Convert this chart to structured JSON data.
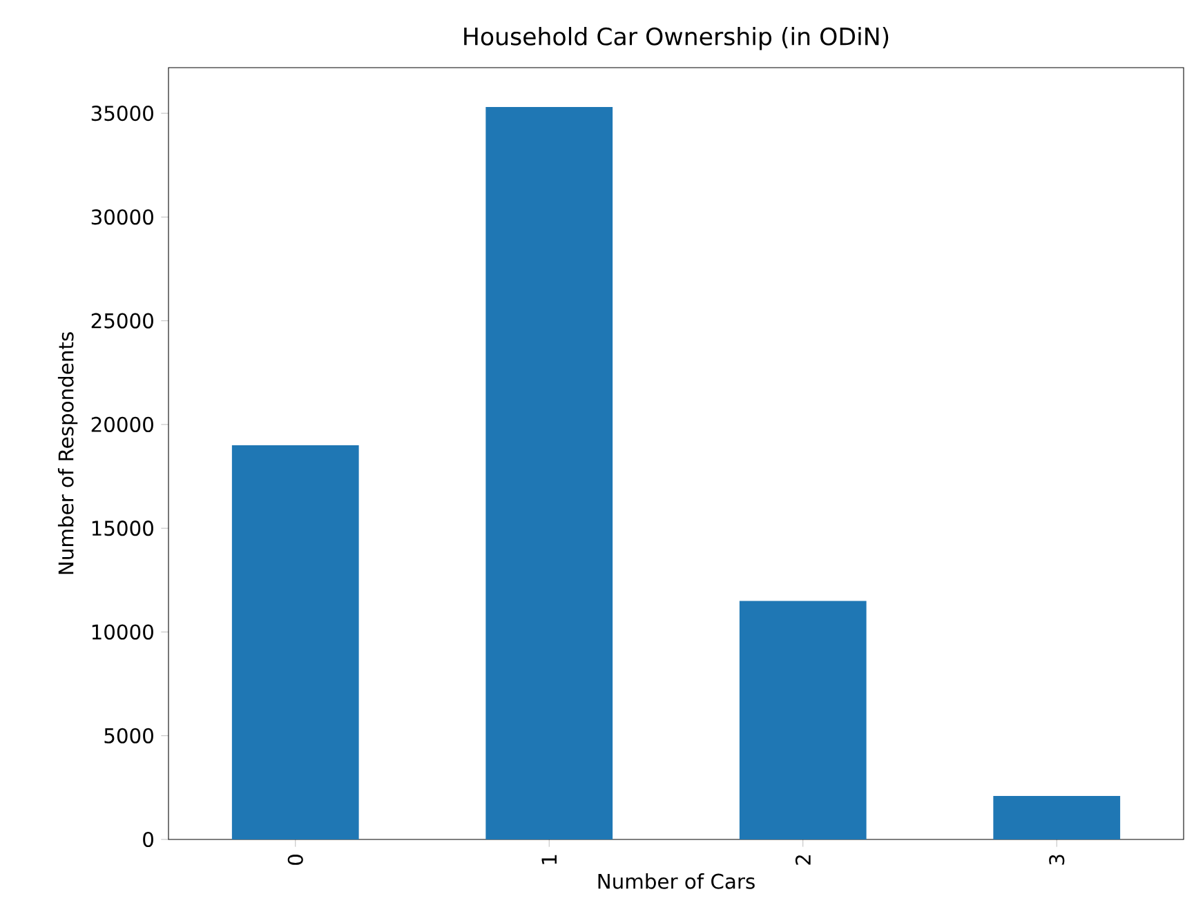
{
  "chart_data": {
    "type": "bar",
    "title": "Household Car Ownership (in ODiN)",
    "xlabel": "Number of Cars",
    "ylabel": "Number of Respondents",
    "categories": [
      "0",
      "1",
      "2",
      "3"
    ],
    "values": [
      19000,
      35300,
      11500,
      2100
    ],
    "color": "#1f77b4",
    "ylim": [
      0,
      37200
    ],
    "yticks": [
      0,
      5000,
      10000,
      15000,
      20000,
      25000,
      30000,
      35000
    ],
    "grid": false
  }
}
